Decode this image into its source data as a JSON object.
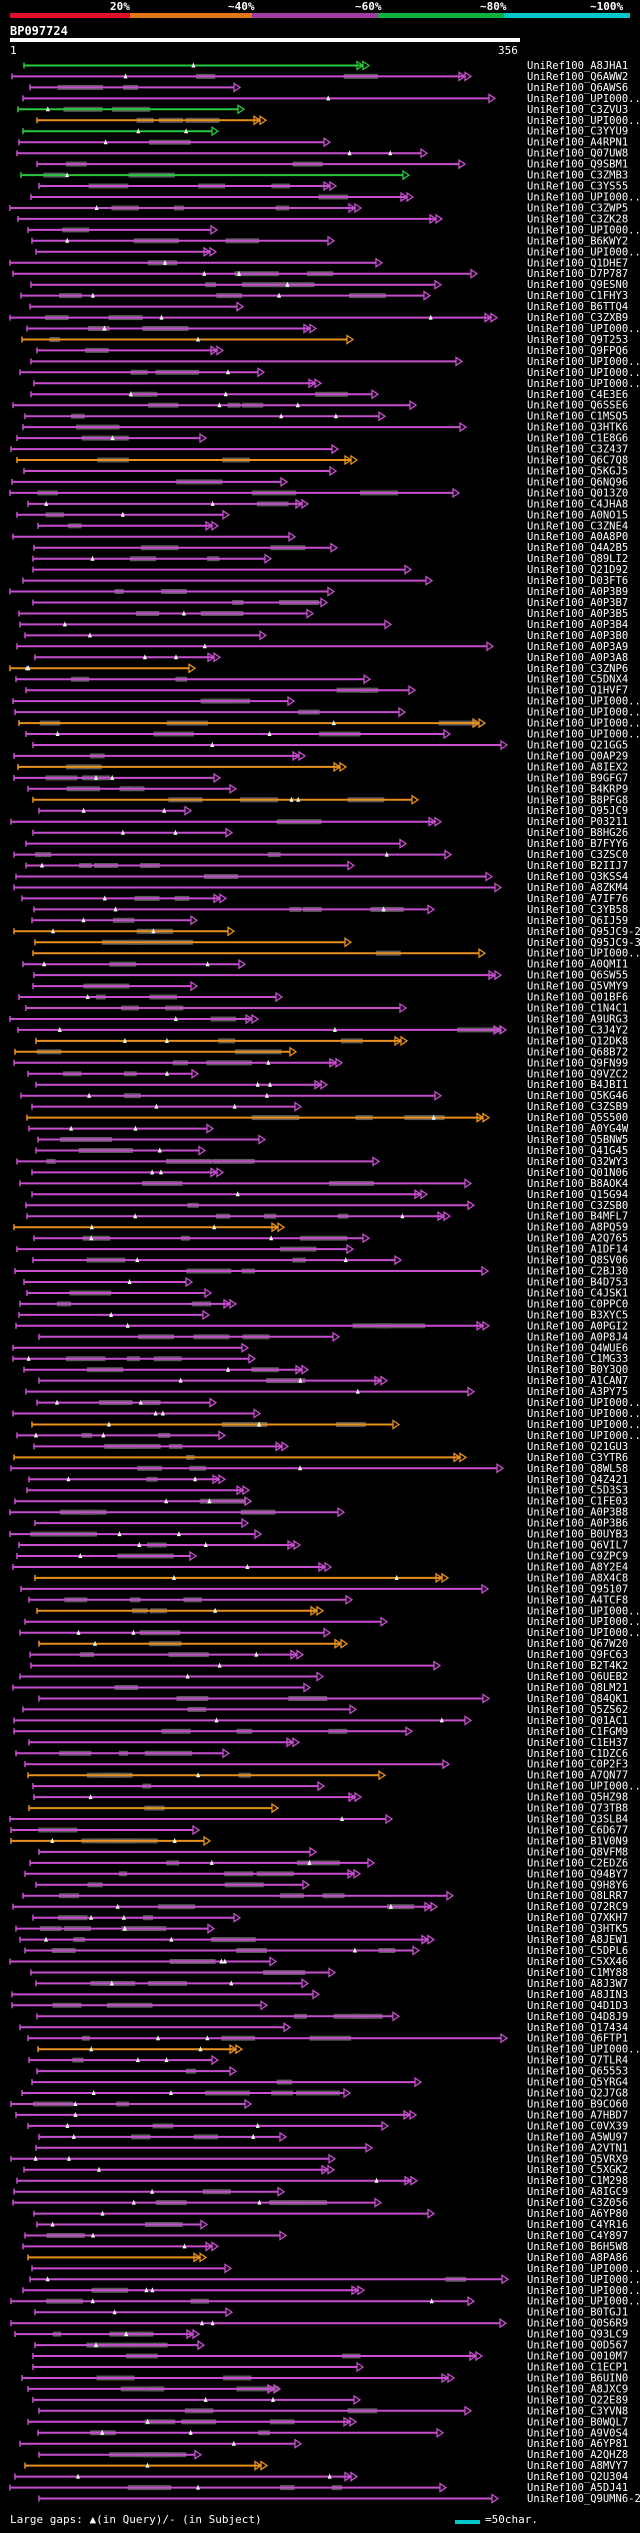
{
  "scale": {
    "labels": [
      "20%",
      "~40%",
      "~60%",
      "~80%",
      "~100%"
    ],
    "colors": [
      "#e0102a",
      "#e07818",
      "#a03ca0",
      "#10b040",
      "#00c8c8"
    ]
  },
  "query": {
    "id": "BP097724",
    "start": "1",
    "end": "356"
  },
  "colors": {
    "purple": "#c84ed0",
    "orange": "#e8901c",
    "green": "#28c83c",
    "gap_grey": "#5a5a5a",
    "gap_mark": "#ffffff"
  },
  "hits": [
    {
      "id": "UniRef100_A8JHA1",
      "color": "green"
    },
    {
      "id": "UniRef100_Q6AWW2",
      "color": "purple"
    },
    {
      "id": "UniRef100_Q6AWS6",
      "color": "purple"
    },
    {
      "id": "UniRef100_UPI000...",
      "color": "purple"
    },
    {
      "id": "UniRef100_C3ZVU3",
      "color": "green"
    },
    {
      "id": "UniRef100_UPI000...",
      "color": "orange"
    },
    {
      "id": "UniRef100_C3YYU9",
      "color": "green"
    },
    {
      "id": "UniRef100_A4RPN1",
      "color": "purple"
    },
    {
      "id": "UniRef100_Q07UW8",
      "color": "purple"
    },
    {
      "id": "UniRef100_Q9SBM1",
      "color": "purple"
    },
    {
      "id": "UniRef100_C3ZMB3",
      "color": "green"
    },
    {
      "id": "UniRef100_C3YS55",
      "color": "purple"
    },
    {
      "id": "UniRef100_UPI000...",
      "color": "purple"
    },
    {
      "id": "UniRef100_C3ZWP5",
      "color": "purple"
    },
    {
      "id": "UniRef100_C3ZK28",
      "color": "purple"
    },
    {
      "id": "UniRef100_UPI000...",
      "color": "purple"
    },
    {
      "id": "UniRef100_B6KWY2",
      "color": "purple"
    },
    {
      "id": "UniRef100_UPI000...",
      "color": "purple"
    },
    {
      "id": "UniRef100_Q1DHE7",
      "color": "purple"
    },
    {
      "id": "UniRef100_D7P787",
      "color": "purple"
    },
    {
      "id": "UniRef100_Q9ESN0",
      "color": "purple"
    },
    {
      "id": "UniRef100_C1FHY3",
      "color": "purple"
    },
    {
      "id": "UniRef100_B6TTQ4",
      "color": "purple"
    },
    {
      "id": "UniRef100_C3ZXB9",
      "color": "purple"
    },
    {
      "id": "UniRef100_UPI000...",
      "color": "purple"
    },
    {
      "id": "UniRef100_Q9T253",
      "color": "orange"
    },
    {
      "id": "UniRef100_Q9FPQ6",
      "color": "purple"
    },
    {
      "id": "UniRef100_UPI000...",
      "color": "purple"
    },
    {
      "id": "UniRef100_UPI000...",
      "color": "purple"
    },
    {
      "id": "UniRef100_UPI000...",
      "color": "purple"
    },
    {
      "id": "UniRef100_C4E3E6",
      "color": "purple"
    },
    {
      "id": "UniRef100_Q6SSE6",
      "color": "purple"
    },
    {
      "id": "UniRef100_C1MSQ5",
      "color": "purple"
    },
    {
      "id": "UniRef100_Q3HTK6",
      "color": "purple"
    },
    {
      "id": "UniRef100_C1E8G6",
      "color": "purple"
    },
    {
      "id": "UniRef100_C3Z437",
      "color": "purple"
    },
    {
      "id": "UniRef100_Q6C7Q8",
      "color": "orange"
    },
    {
      "id": "UniRef100_Q5KGJ5",
      "color": "purple"
    },
    {
      "id": "UniRef100_Q6NQ96",
      "color": "purple"
    },
    {
      "id": "UniRef100_Q013Z0",
      "color": "purple"
    },
    {
      "id": "UniRef100_C4JHA8",
      "color": "purple"
    },
    {
      "id": "UniRef100_A0NO15",
      "color": "purple"
    },
    {
      "id": "UniRef100_C3ZNE4",
      "color": "purple"
    },
    {
      "id": "UniRef100_A0A8P0",
      "color": "purple"
    },
    {
      "id": "UniRef100_Q4A2B5",
      "color": "purple"
    },
    {
      "id": "UniRef100_Q89LI2",
      "color": "purple"
    },
    {
      "id": "UniRef100_Q21D92",
      "color": "purple"
    },
    {
      "id": "UniRef100_D03FT6",
      "color": "purple"
    },
    {
      "id": "UniRef100_A0P3B9",
      "color": "purple"
    },
    {
      "id": "UniRef100_A0P3B7",
      "color": "purple"
    },
    {
      "id": "UniRef100_A0P3B5",
      "color": "purple"
    },
    {
      "id": "UniRef100_A0P3B4",
      "color": "purple"
    },
    {
      "id": "UniRef100_A0P3B0",
      "color": "purple"
    },
    {
      "id": "UniRef100_A0P3A9",
      "color": "purple"
    },
    {
      "id": "UniRef100_A0P3A8",
      "color": "purple"
    },
    {
      "id": "UniRef100_C3ZNP6",
      "color": "orange"
    },
    {
      "id": "UniRef100_C5DNX4",
      "color": "purple"
    },
    {
      "id": "UniRef100_Q1HVF7",
      "color": "purple"
    },
    {
      "id": "UniRef100_UPI000...",
      "color": "purple"
    },
    {
      "id": "UniRef100_UPI000...",
      "color": "purple"
    },
    {
      "id": "UniRef100_UPI000...",
      "color": "orange"
    },
    {
      "id": "UniRef100_UPI000...",
      "color": "purple"
    },
    {
      "id": "UniRef100_Q21GG5",
      "color": "purple"
    },
    {
      "id": "UniRef100_Q0AP29",
      "color": "purple"
    },
    {
      "id": "UniRef100_A8IEX2",
      "color": "orange"
    },
    {
      "id": "UniRef100_B9GFG7",
      "color": "purple"
    },
    {
      "id": "UniRef100_B4KRP9",
      "color": "purple"
    },
    {
      "id": "UniRef100_B8PFG8",
      "color": "orange"
    },
    {
      "id": "UniRef100_Q95JC9",
      "color": "purple"
    },
    {
      "id": "UniRef100_P03211",
      "color": "purple"
    },
    {
      "id": "UniRef100_B8HG26",
      "color": "purple"
    },
    {
      "id": "UniRef100_B7FYY6",
      "color": "purple"
    },
    {
      "id": "UniRef100_C3ZSC0",
      "color": "purple"
    },
    {
      "id": "UniRef100_B2IIJ7",
      "color": "purple"
    },
    {
      "id": "UniRef100_Q3KSS4",
      "color": "purple"
    },
    {
      "id": "UniRef100_A8ZKM4",
      "color": "purple"
    },
    {
      "id": "UniRef100_A7IF76",
      "color": "purple"
    },
    {
      "id": "UniRef100_C3YB58",
      "color": "purple"
    },
    {
      "id": "UniRef100_Q6IJ59",
      "color": "purple"
    },
    {
      "id": "UniRef100_Q95JC9-2",
      "color": "orange"
    },
    {
      "id": "UniRef100_Q95JC9-3",
      "color": "orange"
    },
    {
      "id": "UniRef100_UPI000...",
      "color": "orange"
    },
    {
      "id": "UniRef100_A0QMI1",
      "color": "purple"
    },
    {
      "id": "UniRef100_Q6SW55",
      "color": "purple"
    },
    {
      "id": "UniRef100_Q5VMY9",
      "color": "purple"
    },
    {
      "id": "UniRef100_Q01BF6",
      "color": "purple"
    },
    {
      "id": "UniRef100_C1N4C1",
      "color": "purple"
    },
    {
      "id": "UniRef100_A9URG3",
      "color": "purple"
    },
    {
      "id": "UniRef100_C3J4Y2",
      "color": "purple"
    },
    {
      "id": "UniRef100_Q12DK8",
      "color": "orange"
    },
    {
      "id": "UniRef100_Q68B72",
      "color": "orange"
    },
    {
      "id": "UniRef100_Q9FN99",
      "color": "purple"
    },
    {
      "id": "UniRef100_Q9VZC2",
      "color": "purple"
    },
    {
      "id": "UniRef100_B4JBI1",
      "color": "purple"
    },
    {
      "id": "UniRef100_Q5KG46",
      "color": "purple"
    },
    {
      "id": "UniRef100_C3ZSB9",
      "color": "purple"
    },
    {
      "id": "UniRef100_Q5S500",
      "color": "orange"
    },
    {
      "id": "UniRef100_A0YG4W",
      "color": "purple"
    },
    {
      "id": "UniRef100_Q5BNW5",
      "color": "purple"
    },
    {
      "id": "UniRef100_Q41G45",
      "color": "purple"
    },
    {
      "id": "UniRef100_Q32WY3",
      "color": "purple"
    },
    {
      "id": "UniRef100_Q01N06",
      "color": "purple"
    },
    {
      "id": "UniRef100_B8AOK4",
      "color": "purple"
    },
    {
      "id": "UniRef100_Q15G94",
      "color": "purple"
    },
    {
      "id": "UniRef100_C3ZSB0",
      "color": "purple"
    },
    {
      "id": "UniRef100_B4MFL7",
      "color": "purple"
    },
    {
      "id": "UniRef100_A8PQ59",
      "color": "orange"
    },
    {
      "id": "UniRef100_A2Q765",
      "color": "purple"
    },
    {
      "id": "UniRef100_A1DF14",
      "color": "purple"
    },
    {
      "id": "UniRef100_Q8SV06",
      "color": "purple"
    },
    {
      "id": "UniRef100_C2BJ30",
      "color": "purple"
    },
    {
      "id": "UniRef100_B4D753",
      "color": "purple"
    },
    {
      "id": "UniRef100_C4JSK1",
      "color": "purple"
    },
    {
      "id": "UniRef100_C0PPC0",
      "color": "purple"
    },
    {
      "id": "UniRef100_B3XYC5",
      "color": "purple"
    },
    {
      "id": "UniRef100_A0PGI2",
      "color": "purple"
    },
    {
      "id": "UniRef100_A0P8J4",
      "color": "purple"
    },
    {
      "id": "UniRef100_Q4WUE6",
      "color": "purple"
    },
    {
      "id": "UniRef100_C1MG33",
      "color": "purple"
    },
    {
      "id": "UniRef100_B0Y3Q0",
      "color": "purple"
    },
    {
      "id": "UniRef100_A1CAN7",
      "color": "purple"
    },
    {
      "id": "UniRef100_A3PY75",
      "color": "purple"
    },
    {
      "id": "UniRef100_UPI000...",
      "color": "purple"
    },
    {
      "id": "UniRef100_UPI000...",
      "color": "purple"
    },
    {
      "id": "UniRef100_UPI000...",
      "color": "orange"
    },
    {
      "id": "UniRef100_UPI000...",
      "color": "purple"
    },
    {
      "id": "UniRef100_Q21GU3",
      "color": "purple"
    },
    {
      "id": "UniRef100_C3YTR6",
      "color": "orange"
    },
    {
      "id": "UniRef100_Q8WL58",
      "color": "purple"
    },
    {
      "id": "UniRef100_Q4Z421",
      "color": "purple"
    },
    {
      "id": "UniRef100_C5D3S3",
      "color": "purple"
    },
    {
      "id": "UniRef100_C1FE03",
      "color": "purple"
    },
    {
      "id": "UniRef100_A0P3B8",
      "color": "purple"
    },
    {
      "id": "UniRef100_A0P3B6",
      "color": "purple"
    },
    {
      "id": "UniRef100_B0UYB3",
      "color": "purple"
    },
    {
      "id": "UniRef100_Q6VIL7",
      "color": "purple"
    },
    {
      "id": "UniRef100_C9ZPC9",
      "color": "purple"
    },
    {
      "id": "UniRef100_A8Y2E4",
      "color": "purple"
    },
    {
      "id": "UniRef100_A8X4C8",
      "color": "orange"
    },
    {
      "id": "UniRef100_Q95107",
      "color": "purple"
    },
    {
      "id": "UniRef100_A4TCF8",
      "color": "purple"
    },
    {
      "id": "UniRef100_UPI000...",
      "color": "orange"
    },
    {
      "id": "UniRef100_UPI000...",
      "color": "purple"
    },
    {
      "id": "UniRef100_UPI000...",
      "color": "purple"
    },
    {
      "id": "UniRef100_Q67W20",
      "color": "orange"
    },
    {
      "id": "UniRef100_Q9FC63",
      "color": "purple"
    },
    {
      "id": "UniRef100_B2T4K2",
      "color": "purple"
    },
    {
      "id": "UniRef100_Q6UEB2",
      "color": "purple"
    },
    {
      "id": "UniRef100_Q8LM21",
      "color": "purple"
    },
    {
      "id": "UniRef100_Q84QK1",
      "color": "purple"
    },
    {
      "id": "UniRef100_Q5ZS62",
      "color": "purple"
    },
    {
      "id": "UniRef100_Q01AC1",
      "color": "purple"
    },
    {
      "id": "UniRef100_C1FGM9",
      "color": "purple"
    },
    {
      "id": "UniRef100_C1EH37",
      "color": "purple"
    },
    {
      "id": "UniRef100_C1DZC6",
      "color": "purple"
    },
    {
      "id": "UniRef100_C0P2F3",
      "color": "purple"
    },
    {
      "id": "UniRef100_A7QN77",
      "color": "orange"
    },
    {
      "id": "UniRef100_UPI000...",
      "color": "purple"
    },
    {
      "id": "UniRef100_Q5HZ98",
      "color": "purple"
    },
    {
      "id": "UniRef100_Q73TB8",
      "color": "orange"
    },
    {
      "id": "UniRef100_Q3SLB4",
      "color": "purple"
    },
    {
      "id": "UniRef100_C6D677",
      "color": "purple"
    },
    {
      "id": "UniRef100_B1V0N9",
      "color": "orange"
    },
    {
      "id": "UniRef100_Q8VFM8",
      "color": "purple"
    },
    {
      "id": "UniRef100_C2EDZ6",
      "color": "purple"
    },
    {
      "id": "UniRef100_Q94BY7",
      "color": "purple"
    },
    {
      "id": "UniRef100_Q9H8Y6",
      "color": "purple"
    },
    {
      "id": "UniRef100_Q8LRR7",
      "color": "purple"
    },
    {
      "id": "UniRef100_Q72RC9",
      "color": "purple"
    },
    {
      "id": "UniRef100_Q7XKH7",
      "color": "purple"
    },
    {
      "id": "UniRef100_Q3HTK5",
      "color": "purple"
    },
    {
      "id": "UniRef100_A8JEW1",
      "color": "purple"
    },
    {
      "id": "UniRef100_C5DPL6",
      "color": "purple"
    },
    {
      "id": "UniRef100_C5XX46",
      "color": "purple"
    },
    {
      "id": "UniRef100_C1MY88",
      "color": "purple"
    },
    {
      "id": "UniRef100_A8J3W7",
      "color": "purple"
    },
    {
      "id": "UniRef100_A8JIN3",
      "color": "purple"
    },
    {
      "id": "UniRef100_Q4D1D3",
      "color": "purple"
    },
    {
      "id": "UniRef100_Q4D8J9",
      "color": "purple"
    },
    {
      "id": "UniRef100_Q17434",
      "color": "purple"
    },
    {
      "id": "UniRef100_Q6FTP1",
      "color": "purple"
    },
    {
      "id": "UniRef100_UPI000...",
      "color": "orange"
    },
    {
      "id": "UniRef100_Q7TLR4",
      "color": "purple"
    },
    {
      "id": "UniRef100_Q65553",
      "color": "purple"
    },
    {
      "id": "UniRef100_Q5YRG4",
      "color": "purple"
    },
    {
      "id": "UniRef100_Q2J7G8",
      "color": "purple"
    },
    {
      "id": "UniRef100_B9CO60",
      "color": "purple"
    },
    {
      "id": "UniRef100_A7HBD7",
      "color": "purple"
    },
    {
      "id": "UniRef100_C0VX39",
      "color": "purple"
    },
    {
      "id": "UniRef100_A5WU97",
      "color": "purple"
    },
    {
      "id": "UniRef100_A2VTN1",
      "color": "purple"
    },
    {
      "id": "UniRef100_Q5VRX9",
      "color": "purple"
    },
    {
      "id": "UniRef100_C5XGK2",
      "color": "purple"
    },
    {
      "id": "UniRef100_C1M298",
      "color": "purple"
    },
    {
      "id": "UniRef100_A8IGC9",
      "color": "purple"
    },
    {
      "id": "UniRef100_C3Z056",
      "color": "purple"
    },
    {
      "id": "UniRef100_A6YP80",
      "color": "purple"
    },
    {
      "id": "UniRef100_C4YR16",
      "color": "purple"
    },
    {
      "id": "UniRef100_C4Y897",
      "color": "purple"
    },
    {
      "id": "UniRef100_B6H5W8",
      "color": "purple"
    },
    {
      "id": "UniRef100_A8PA86",
      "color": "orange"
    },
    {
      "id": "UniRef100_UPI000...",
      "color": "purple"
    },
    {
      "id": "UniRef100_UPI000...",
      "color": "purple"
    },
    {
      "id": "UniRef100_UPI000...",
      "color": "purple"
    },
    {
      "id": "UniRef100_UPI000...",
      "color": "purple"
    },
    {
      "id": "UniRef100_B0TGJ1",
      "color": "purple"
    },
    {
      "id": "UniRef100_Q0S6R9",
      "color": "purple"
    },
    {
      "id": "UniRef100_Q93LC9",
      "color": "purple"
    },
    {
      "id": "UniRef100_Q0D567",
      "color": "purple"
    },
    {
      "id": "UniRef100_Q010M7",
      "color": "purple"
    },
    {
      "id": "UniRef100_C1ECP1",
      "color": "purple"
    },
    {
      "id": "UniRef100_B6UIN0",
      "color": "purple"
    },
    {
      "id": "UniRef100_A8JXC9",
      "color": "purple"
    },
    {
      "id": "UniRef100_Q22E89",
      "color": "purple"
    },
    {
      "id": "UniRef100_C3YVN8",
      "color": "purple"
    },
    {
      "id": "UniRef100_B0WQL7",
      "color": "purple"
    },
    {
      "id": "UniRef100_A9V0S4",
      "color": "purple"
    },
    {
      "id": "UniRef100_A6YP81",
      "color": "purple"
    },
    {
      "id": "UniRef100_A2QHZ8",
      "color": "purple"
    },
    {
      "id": "UniRef100_A8MVY7",
      "color": "orange"
    },
    {
      "id": "UniRef100_Q2U304",
      "color": "purple"
    },
    {
      "id": "UniRef100_A5DJ41",
      "color": "purple"
    },
    {
      "id": "UniRef100_Q9UMN6-2",
      "color": "purple"
    }
  ],
  "legend": {
    "large_gaps_text": "Large gaps: ▲(in Query)/- (in Subject)",
    "scale_text": "=50char."
  }
}
